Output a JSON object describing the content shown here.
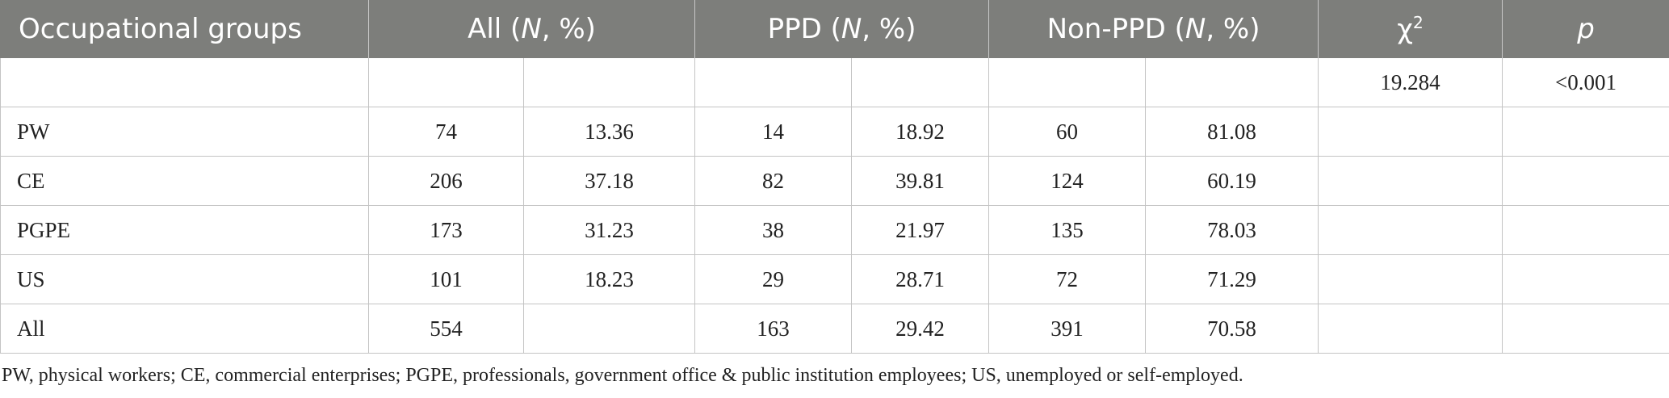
{
  "header": {
    "col0": "Occupational groups",
    "all_pre": "All (",
    "n_italic": "N",
    "all_post": ", %)",
    "ppd_pre": "PPD (",
    "ppd_post": ", %)",
    "nonppd_pre": "Non-PPD (",
    "nonppd_post": ", %)",
    "chi": "χ",
    "chi_sup": "2",
    "p": "p"
  },
  "stat_row": {
    "chi2": "19.284",
    "p": "<0.001"
  },
  "rows": [
    {
      "label": "PW",
      "all_n": "74",
      "all_pct": "13.36",
      "ppd_n": "14",
      "ppd_pct": "18.92",
      "non_n": "60",
      "non_pct": "81.08"
    },
    {
      "label": "CE",
      "all_n": "206",
      "all_pct": "37.18",
      "ppd_n": "82",
      "ppd_pct": "39.81",
      "non_n": "124",
      "non_pct": "60.19"
    },
    {
      "label": "PGPE",
      "all_n": "173",
      "all_pct": "31.23",
      "ppd_n": "38",
      "ppd_pct": "21.97",
      "non_n": "135",
      "non_pct": "78.03"
    },
    {
      "label": "US",
      "all_n": "101",
      "all_pct": "18.23",
      "ppd_n": "29",
      "ppd_pct": "28.71",
      "non_n": "72",
      "non_pct": "71.29"
    },
    {
      "label": "All",
      "all_n": "554",
      "all_pct": "",
      "ppd_n": "163",
      "ppd_pct": "29.42",
      "non_n": "391",
      "non_pct": "70.58"
    }
  ],
  "footnote": "PW, physical workers; CE, commercial enterprises; PGPE, professionals, government office & public institution employees; US, unemployed or self-employed."
}
